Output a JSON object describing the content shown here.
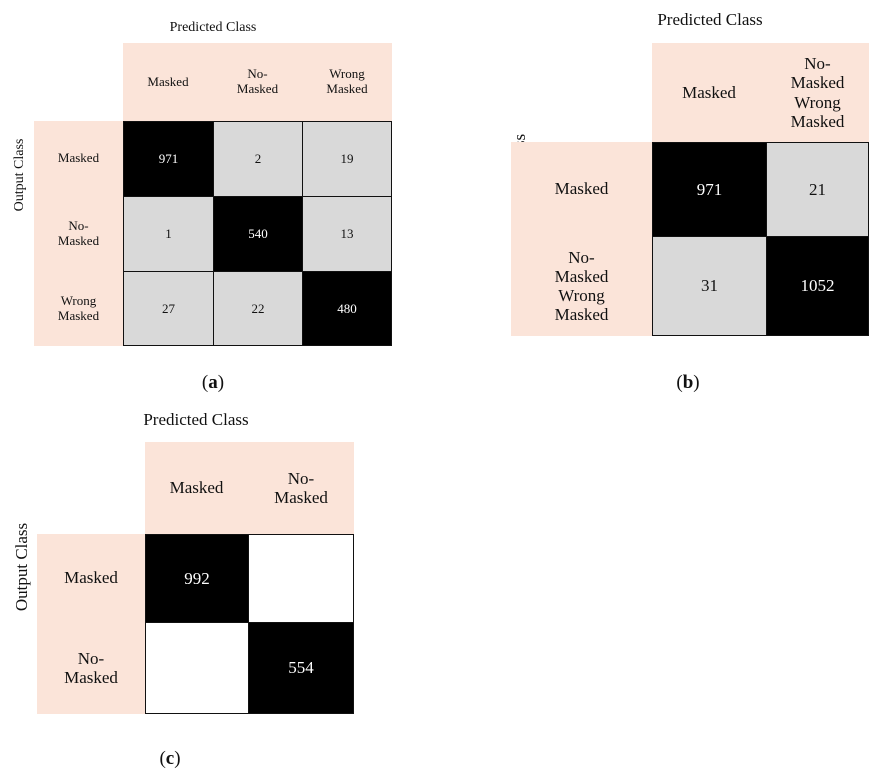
{
  "chart_data": [
    {
      "type": "heatmap",
      "panel_label": "a",
      "title": "Predicted Class",
      "ylabel": "Output Class",
      "columns": [
        "Masked",
        "No-\nMasked",
        "Wrong\nMasked"
      ],
      "rows": [
        "Masked",
        "No-\nMasked",
        "Wrong\nMasked"
      ],
      "values": [
        [
          971,
          2,
          19
        ],
        [
          1,
          540,
          13
        ],
        [
          27,
          22,
          480
        ]
      ]
    },
    {
      "type": "heatmap",
      "panel_label": "b",
      "title": "Predicted Class",
      "ylabel": "Output Class",
      "columns": [
        "Masked",
        "No-\nMasked\nWrong\nMasked"
      ],
      "rows": [
        "Masked",
        "No-\nMasked\nWrong\nMasked"
      ],
      "values": [
        [
          971,
          21
        ],
        [
          31,
          1052
        ]
      ]
    },
    {
      "type": "heatmap",
      "panel_label": "c",
      "title": "Predicted Class",
      "ylabel": "Output Class",
      "columns": [
        "Masked",
        "No-\nMasked"
      ],
      "rows": [
        "Masked",
        "No-\nMasked"
      ],
      "values": [
        [
          992,
          null
        ],
        [
          null,
          554
        ]
      ]
    }
  ],
  "colors": {
    "header_fill": "#fbe4d9",
    "diagonal_fill": "#000000",
    "offdiagonal_fill": "#d9d9d9",
    "empty_fill": "#ffffff"
  }
}
